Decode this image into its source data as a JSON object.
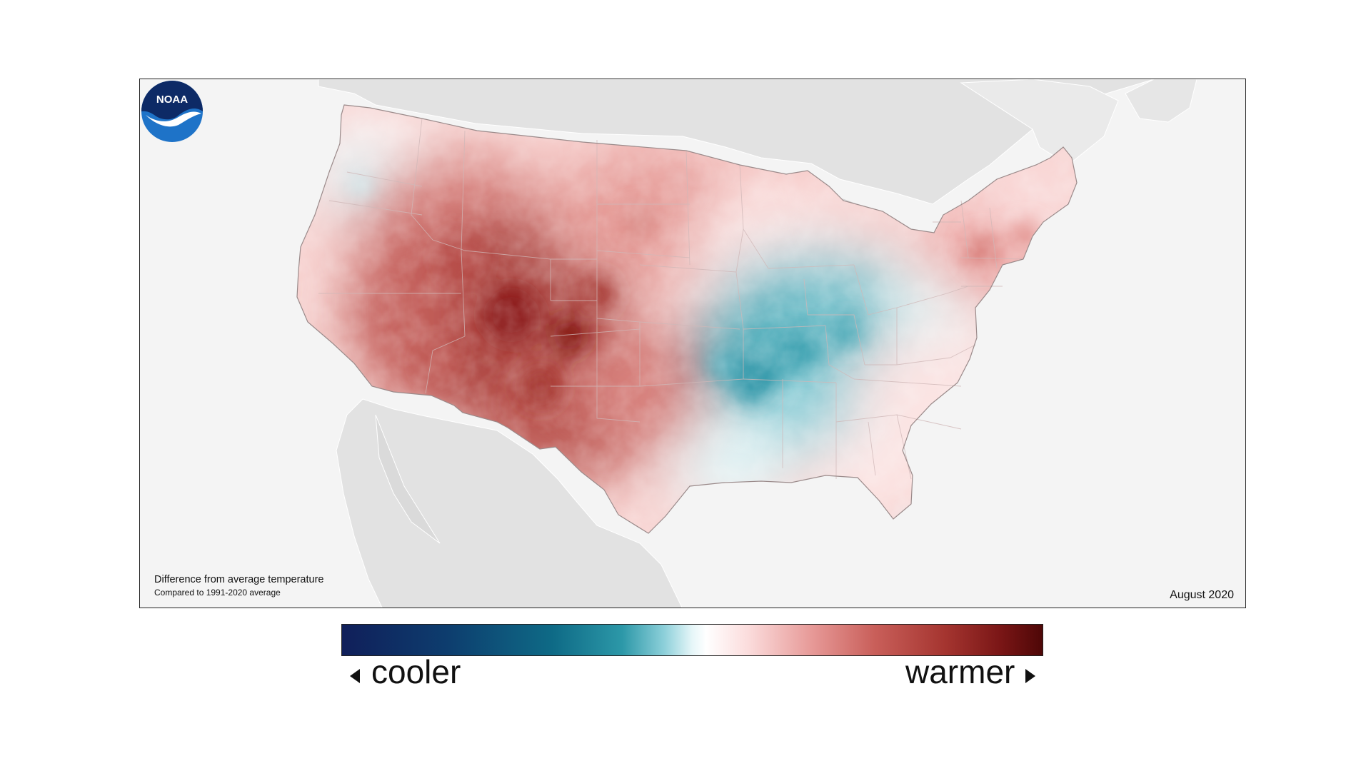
{
  "map": {
    "caption_title": "Difference from average temperature",
    "caption_subtitle": "Compared to 1991-2020 average",
    "date": "August 2020",
    "logo_text": "NOAA",
    "colors": {
      "ocean": "#f4f4f4",
      "neighbor_land": "#e2e2e2",
      "cool": "#2c98a8",
      "warm": "#a53530",
      "near_average": "#ffffff"
    }
  },
  "legend": {
    "cooler_label": "cooler",
    "warmer_label": "warmer"
  }
}
